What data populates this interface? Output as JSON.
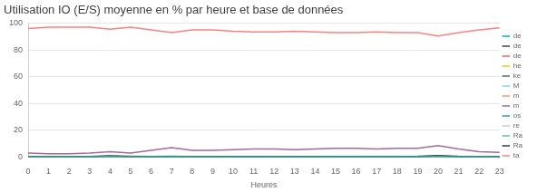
{
  "chart_data": {
    "type": "line",
    "title": "Utilisation IO (E/S) moyenne en % par heure et base de données",
    "x_label": "Heures",
    "categories": [
      "0",
      "1",
      "2",
      "3",
      "4",
      "5",
      "6",
      "7",
      "8",
      "9",
      "10",
      "11",
      "12",
      "13",
      "14",
      "15",
      "16",
      "17",
      "18",
      "19",
      "20",
      "21",
      "22",
      "23"
    ],
    "ylim": [
      0,
      100
    ],
    "yticks": [
      0,
      20,
      40,
      60,
      80,
      100
    ],
    "grid": true,
    "legend": "right",
    "series": [
      {
        "name": "de",
        "color": "#01B8AA",
        "values": [
          0.3,
          0.3,
          0.3,
          0.3,
          0.4,
          0.3,
          0.3,
          0.4,
          0.3,
          0.3,
          0.3,
          0.3,
          0.3,
          0.3,
          0.3,
          0.3,
          0.3,
          0.3,
          0.3,
          0.3,
          0.4,
          0.3,
          0.3,
          0.3
        ]
      },
      {
        "name": "de",
        "color": "#374649",
        "values": [
          0.2,
          0.2,
          0.2,
          0.2,
          0.8,
          0.2,
          0.2,
          0.3,
          0.2,
          0.2,
          0.2,
          0.2,
          0.2,
          0.2,
          0.2,
          0.2,
          0.2,
          0.2,
          0.2,
          0.3,
          1.0,
          0.3,
          0.2,
          0.2
        ]
      },
      {
        "name": "de",
        "color": "#FD625E",
        "values": [
          0.1,
          0.1,
          0.1,
          0.1,
          0.2,
          0.1,
          0.1,
          0.1,
          0.1,
          0.1,
          0.1,
          0.1,
          0.1,
          0.1,
          0.1,
          0.1,
          0.1,
          0.1,
          0.1,
          0.1,
          0.2,
          0.1,
          0.1,
          0.1
        ]
      },
      {
        "name": "he",
        "color": "#F2C80F",
        "values": [
          0.2,
          0.2,
          0.2,
          0.2,
          0.3,
          0.2,
          0.2,
          0.2,
          0.2,
          0.2,
          0.2,
          0.2,
          0.2,
          0.2,
          0.2,
          0.2,
          0.2,
          0.2,
          0.2,
          0.2,
          0.3,
          0.2,
          0.2,
          0.2
        ]
      },
      {
        "name": "ke",
        "color": "#5F6B6D",
        "values": [
          0.5,
          0.5,
          0.5,
          0.5,
          0.9,
          0.6,
          0.5,
          0.6,
          0.5,
          0.5,
          0.5,
          0.5,
          0.5,
          0.5,
          0.5,
          0.5,
          0.5,
          0.5,
          0.5,
          0.6,
          1.2,
          0.6,
          0.5,
          0.5
        ]
      },
      {
        "name": "M",
        "color": "#8AD4EB",
        "values": [
          0.1,
          0.1,
          0.1,
          0.1,
          0.2,
          0.1,
          0.1,
          0.1,
          0.1,
          0.1,
          0.1,
          0.1,
          0.1,
          0.1,
          0.1,
          0.1,
          0.1,
          0.1,
          0.1,
          0.1,
          0.2,
          0.1,
          0.1,
          0.1
        ]
      },
      {
        "name": "m",
        "color": "#FE9666",
        "values": [
          0.2,
          0.2,
          0.2,
          0.2,
          0.3,
          0.2,
          0.2,
          0.3,
          0.2,
          0.2,
          0.2,
          0.2,
          0.2,
          0.2,
          0.2,
          0.2,
          0.2,
          0.2,
          0.2,
          0.2,
          0.3,
          0.2,
          0.2,
          0.2
        ]
      },
      {
        "name": "m",
        "color": "#A66999",
        "values": [
          3,
          2.5,
          2.5,
          3,
          4,
          3,
          5,
          7,
          5,
          5,
          5.5,
          6,
          6,
          5.5,
          6,
          6.5,
          6.5,
          6,
          6.5,
          6.5,
          8.5,
          6,
          4,
          3.5
        ]
      },
      {
        "name": "os",
        "color": "#3599B8",
        "values": [
          0.1,
          0.1,
          0.1,
          0.1,
          0.2,
          0.1,
          0.1,
          0.1,
          0.1,
          0.1,
          0.1,
          0.1,
          0.1,
          0.1,
          0.1,
          0.1,
          0.1,
          0.1,
          0.1,
          0.1,
          0.2,
          0.1,
          0.1,
          0.1
        ]
      },
      {
        "name": "re",
        "color": "#DFBFBF",
        "values": [
          0.4,
          0.4,
          0.4,
          0.4,
          0.6,
          0.4,
          0.4,
          0.5,
          0.4,
          0.4,
          0.4,
          0.4,
          0.4,
          0.4,
          0.4,
          0.4,
          0.4,
          0.4,
          0.4,
          0.4,
          0.6,
          0.4,
          0.4,
          0.4
        ]
      },
      {
        "name": "Ra",
        "color": "#4AC5BB",
        "values": [
          0.1,
          0.1,
          0.1,
          0.1,
          0.1,
          0.1,
          0.1,
          0.1,
          0.1,
          0.1,
          0.1,
          0.1,
          0.1,
          0.1,
          0.1,
          0.1,
          0.1,
          0.1,
          0.1,
          0.1,
          0.1,
          0.1,
          0.1,
          0.1
        ]
      },
      {
        "name": "Ra",
        "color": "#2F3A3C",
        "values": [
          0.2,
          0.2,
          0.2,
          0.2,
          0.4,
          0.2,
          0.2,
          0.2,
          0.2,
          0.2,
          0.2,
          0.2,
          0.2,
          0.2,
          0.2,
          0.2,
          0.2,
          0.2,
          0.2,
          0.2,
          0.5,
          0.2,
          0.2,
          0.2
        ]
      },
      {
        "name": "ta",
        "color": "#FB8281",
        "values": [
          96,
          97,
          97,
          97,
          95.5,
          97,
          95,
          93,
          95,
          95,
          94,
          93.5,
          93.5,
          94,
          93.5,
          93,
          93,
          93.5,
          93,
          93,
          90.5,
          93,
          95,
          96.5
        ]
      }
    ]
  }
}
